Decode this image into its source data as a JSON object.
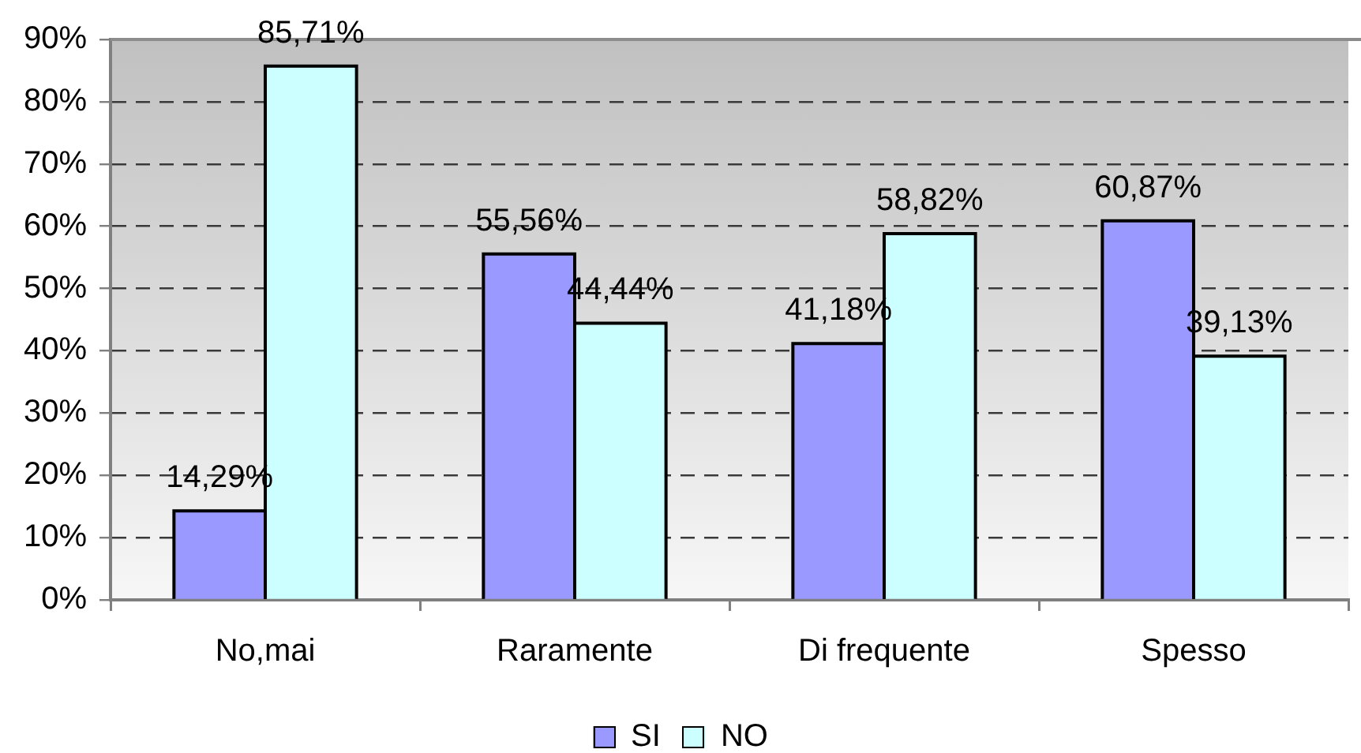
{
  "chart_data": {
    "type": "bar",
    "categories": [
      "No,mai",
      "Raramente",
      "Di frequente",
      "Spesso"
    ],
    "series": [
      {
        "name": "SI",
        "color": "#9999ff",
        "values": [
          14.29,
          55.56,
          41.18,
          60.87
        ],
        "value_labels": [
          "14,29%",
          "55,56%",
          "41,18%",
          "60,87%"
        ]
      },
      {
        "name": "NO",
        "color": "#ccffff",
        "values": [
          85.71,
          44.44,
          58.82,
          39.13
        ],
        "value_labels": [
          "85,71%",
          "44,44%",
          "58,82%",
          "39,13%"
        ]
      }
    ],
    "ylim": [
      0,
      90
    ],
    "yticks": [
      {
        "value": 0,
        "label": "0%"
      },
      {
        "value": 10,
        "label": "10%"
      },
      {
        "value": 20,
        "label": "20%"
      },
      {
        "value": 30,
        "label": "30%"
      },
      {
        "value": 40,
        "label": "40%"
      },
      {
        "value": 50,
        "label": "50%"
      },
      {
        "value": 60,
        "label": "60%"
      },
      {
        "value": 70,
        "label": "70%"
      },
      {
        "value": 80,
        "label": "80%"
      },
      {
        "value": 90,
        "label": "90%"
      }
    ],
    "grid": "y",
    "legend": "bottom"
  }
}
